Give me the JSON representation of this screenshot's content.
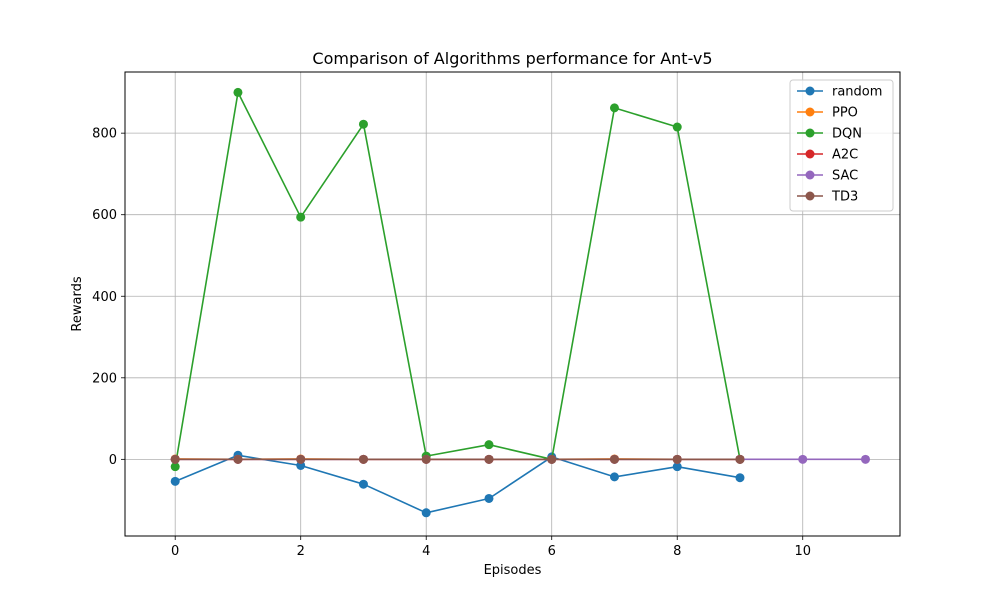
{
  "chart_data": {
    "type": "line",
    "title": "Comparison of Algorithms performance for Ant-v5",
    "xlabel": "Episodes",
    "ylabel": "Rewards",
    "xlim": [
      -0.8,
      11.55
    ],
    "ylim": [
      -188,
      950
    ],
    "xticks": [
      0,
      2,
      4,
      6,
      8,
      10
    ],
    "yticks": [
      0,
      200,
      400,
      600,
      800
    ],
    "grid": true,
    "legend_position": "top-right",
    "series": [
      {
        "name": "random",
        "color": "#1f77b4",
        "x": [
          0,
          1,
          2,
          3,
          4,
          5,
          6,
          7,
          8,
          9
        ],
        "y": [
          -54,
          10,
          -15,
          -61,
          -131,
          -96,
          6,
          -43,
          -18,
          -45
        ]
      },
      {
        "name": "PPO",
        "color": "#ff7f0e",
        "x": [
          0,
          1,
          2,
          3,
          4,
          5,
          6,
          7,
          8,
          9
        ],
        "y": [
          1,
          0,
          1,
          0,
          0,
          0,
          0,
          1,
          0,
          0
        ]
      },
      {
        "name": "DQN",
        "color": "#2ca02c",
        "x": [
          0,
          1,
          2,
          3,
          4,
          5,
          6,
          7,
          8,
          9
        ],
        "y": [
          -18,
          900,
          594,
          822,
          8,
          36,
          0,
          862,
          815,
          0
        ]
      },
      {
        "name": "A2C",
        "color": "#d62728",
        "x": [
          0,
          1,
          2,
          3,
          4,
          5,
          6,
          7,
          8,
          9
        ],
        "y": [
          0,
          0,
          0,
          0,
          0,
          0,
          0,
          0,
          0,
          0
        ]
      },
      {
        "name": "SAC",
        "color": "#9467bd",
        "x": [
          0,
          1,
          2,
          3,
          4,
          5,
          6,
          7,
          8,
          9,
          10,
          11
        ],
        "y": [
          0,
          0,
          0,
          0,
          0,
          0,
          0,
          0,
          0,
          0,
          0,
          0
        ]
      },
      {
        "name": "TD3",
        "color": "#8c564b",
        "x": [
          0,
          1,
          2,
          3,
          4,
          5,
          6,
          7,
          8,
          9
        ],
        "y": [
          0,
          0,
          0,
          0,
          0,
          0,
          0,
          0,
          0,
          0
        ]
      }
    ]
  }
}
